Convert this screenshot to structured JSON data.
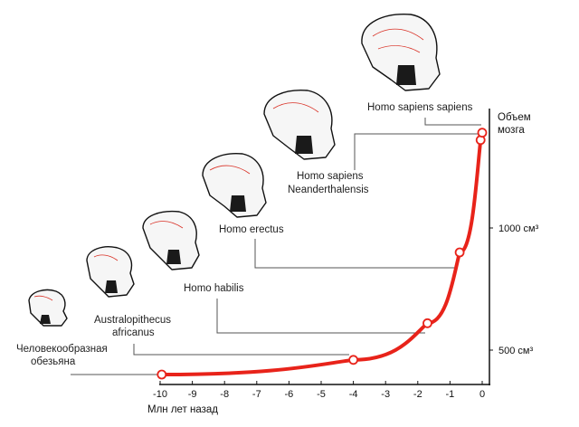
{
  "chart_data": {
    "type": "line",
    "title": "",
    "xlabel": "Млн лет назад",
    "ylabel": "Объем мозга",
    "xlim": [
      -10,
      0
    ],
    "x_ticks": [
      "-10",
      "-9",
      "-8",
      "-7",
      "-6",
      "-5",
      "-4",
      "-3",
      "-2",
      "-1",
      "0"
    ],
    "y_ticks": [
      {
        "value": 500,
        "label": "500 см³"
      },
      {
        "value": 1000,
        "label": "1000 см³"
      }
    ],
    "series": [
      {
        "color": "#e8231a",
        "points": [
          {
            "x": -9.95,
            "y": 400,
            "label": "Человекообразная обезьяна"
          },
          {
            "x": -4.0,
            "y": 460,
            "label": "Australopithecus africanus"
          },
          {
            "x": -1.7,
            "y": 610,
            "label": "Homo habilis"
          },
          {
            "x": -0.7,
            "y": 900,
            "label": "Homo erectus"
          },
          {
            "x": -0.05,
            "y": 1360,
            "label": "Homo sapiens Neanderthalensis"
          },
          {
            "x": 0.0,
            "y": 1390,
            "label": "Homo sapiens sapiens"
          }
        ]
      }
    ]
  },
  "labels": {
    "ape_line1": "Человекообразная",
    "ape_line2": "обезьяна",
    "austr_line1": "Australopithecus",
    "austr_line2": "africanus",
    "habilis": "Homo habilis",
    "erectus": "Homo erectus",
    "neander_line1": "Homo sapiens",
    "neander_line2": "Neanderthalensis",
    "sapiens": "Homo sapiens sapiens",
    "ylabel_line1": "Объем",
    "ylabel_line2": "мозга"
  },
  "icons": [
    "ape-skull-icon",
    "australopithecus-skull-icon",
    "habilis-skull-icon",
    "erectus-skull-icon",
    "neanderthal-skull-icon",
    "sapiens-skull-icon"
  ]
}
